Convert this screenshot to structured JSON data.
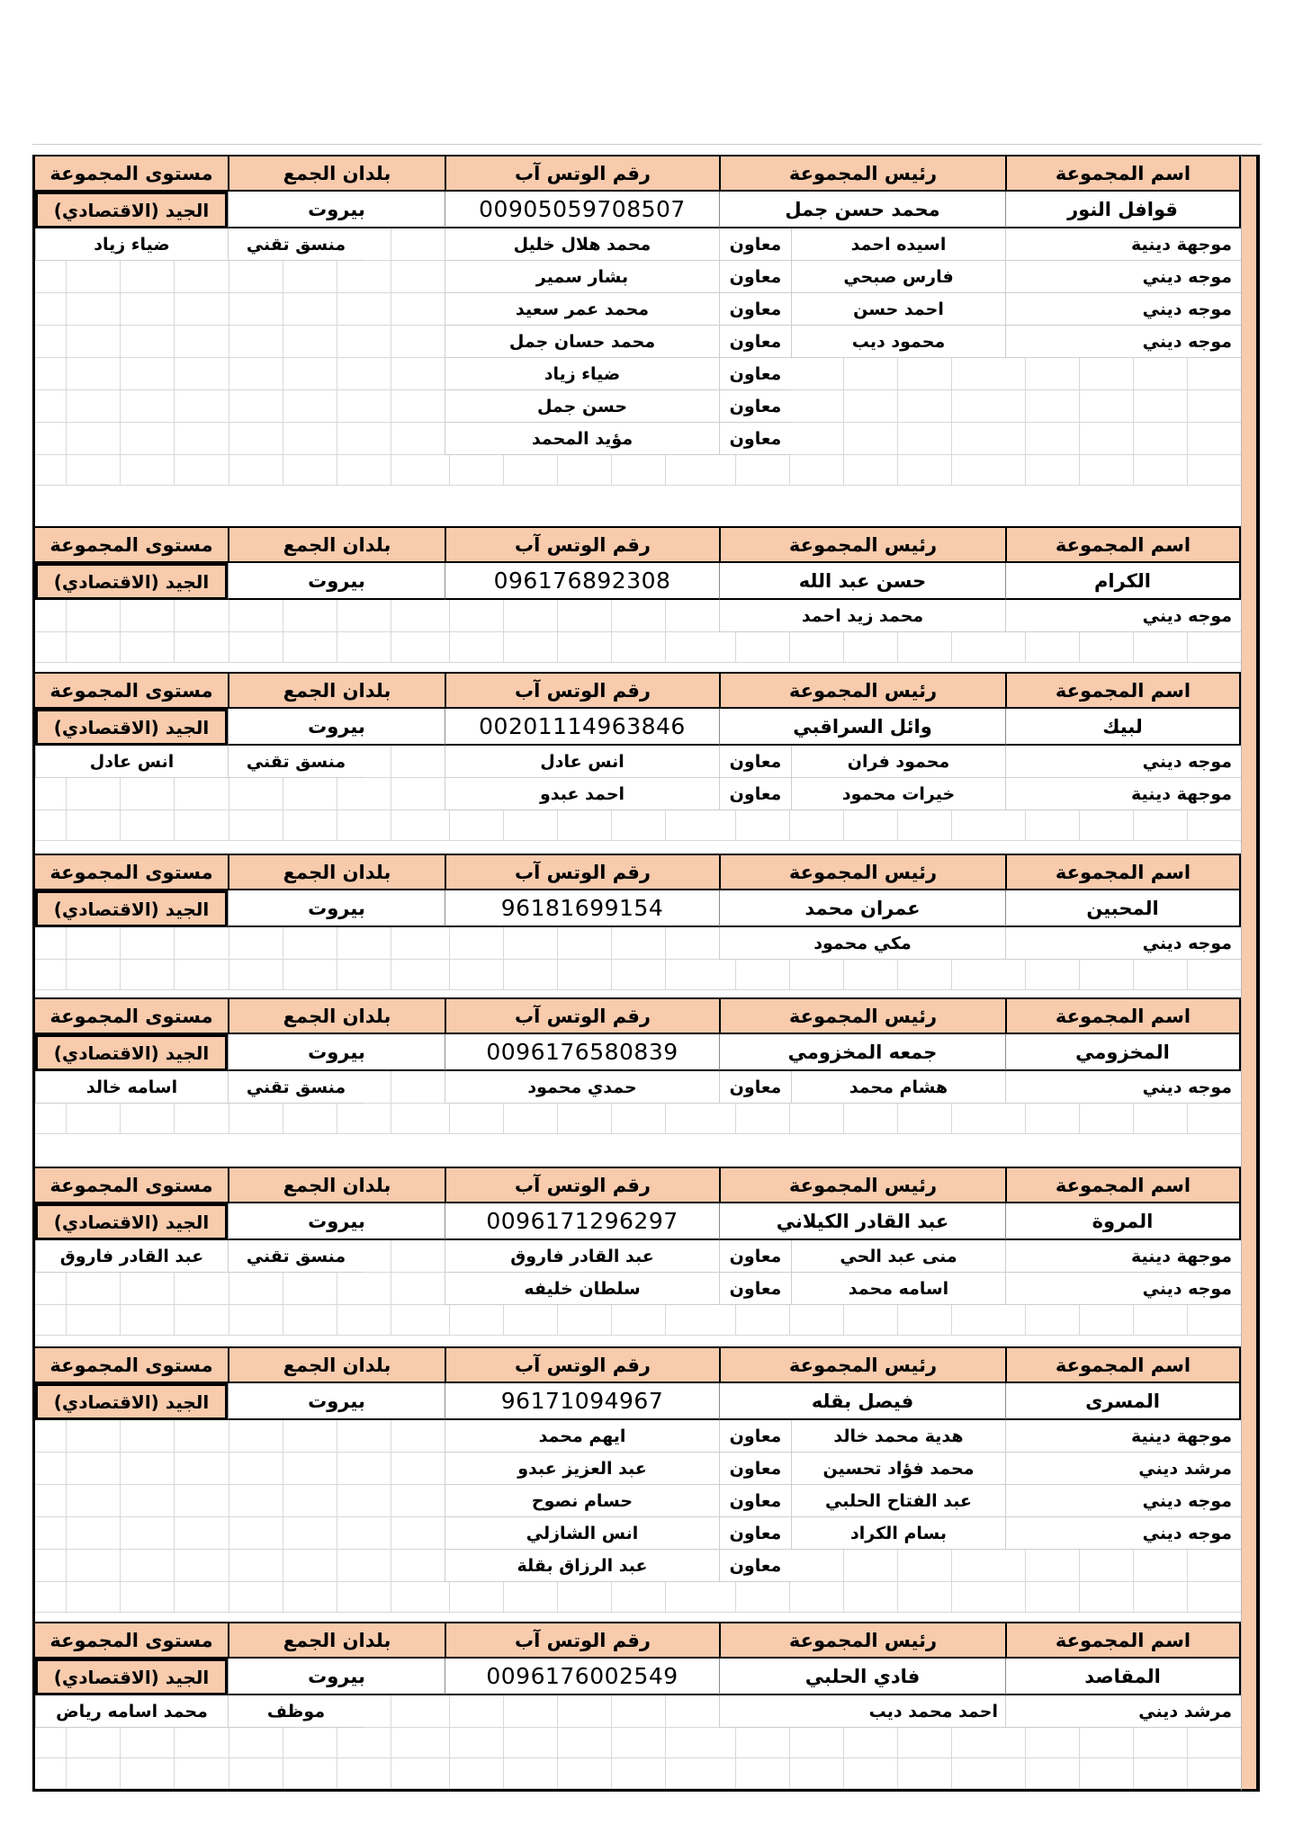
{
  "document": {
    "columns": [
      "اسم المجموعة",
      "رئيس المجموعة",
      "رقم الوتس آب",
      "بلدان الجمع",
      "مستوى المجموعة"
    ],
    "assistant_label": "معاون",
    "colors": {
      "header_bg": "#F8CBAD",
      "table_border": "#000000",
      "grid_line": "#D8D8D8",
      "number_flag_green": "#2E8B2E"
    },
    "blocks": [
      {
        "name": "قوافل النور",
        "leader": "محمد حسن جمل",
        "whatsapp": "00905059708507",
        "country": "بيروت",
        "level": "الجيد (الاقتصادي)",
        "flag": true,
        "gap_after": 45,
        "rows": [
          {
            "role": "موجهة دينية",
            "leader": "اسيده احمد",
            "assist": true,
            "member": "محمد هلال خليل",
            "coord": "منسق تقني",
            "level_name": "ضياء زياد"
          },
          {
            "role": "موجه ديني",
            "leader": "فارس صبحي",
            "assist": true,
            "member": "بشار سمير"
          },
          {
            "role": "موجه ديني",
            "leader": "احمد حسن",
            "assist": true,
            "member": "محمد عمر سعيد"
          },
          {
            "role": "موجه ديني",
            "leader": "محمود ديب",
            "assist": true,
            "member": "محمد حسان  جمل"
          },
          {
            "assist": true,
            "member": "ضياء زياد"
          },
          {
            "assist": true,
            "member": "حسن جمل"
          },
          {
            "assist": true,
            "member": "مؤيد المحمد"
          }
        ]
      },
      {
        "name": "الكرام",
        "leader": "حسن عبد الله",
        "whatsapp": "096176892308",
        "country": "بيروت",
        "level": "الجيد (الاقتصادي)",
        "flag": true,
        "gap_after": 10,
        "rows": [
          {
            "role": "موجه ديني",
            "leader_wide": "محمد زيد احمد"
          }
        ]
      },
      {
        "name": "لبيك",
        "leader": "وائل السراقبي",
        "whatsapp": "00201114963846",
        "country": "بيروت",
        "level": "الجيد (الاقتصادي)",
        "flag": true,
        "gap_after": 14,
        "rows": [
          {
            "role": "موجه ديني",
            "leader": "محمود فران",
            "assist": true,
            "member": "انس عادل",
            "coord": "منسق تقني",
            "level_name": "انس عادل"
          },
          {
            "role": "موجهة دينية",
            "leader": "خيرات محمود",
            "assist": true,
            "member": "احمد عبدو"
          }
        ]
      },
      {
        "name": "المحبين",
        "leader": "عمران محمد",
        "whatsapp": "96181699154",
        "country": "بيروت",
        "level": "الجيد (الاقتصادي)",
        "flag": false,
        "gap_after": 8,
        "rows": [
          {
            "role": "موجه ديني",
            "leader_wide": "مكي محمود"
          }
        ]
      },
      {
        "name": "المخزومي",
        "leader": "جمعه المخزومي",
        "whatsapp": "0096176580839",
        "country": "بيروت",
        "level": "الجيد (الاقتصادي)",
        "flag": true,
        "gap_after": 36,
        "rows": [
          {
            "role": "موجه ديني",
            "leader": "هشام محمد",
            "assist": true,
            "member": "حمدي محمود",
            "coord": "منسق تقني",
            "level_name": "اسامه خالد"
          }
        ]
      },
      {
        "name": "المروة",
        "leader": "عبد القادر الكيلاني",
        "whatsapp": "0096171296297",
        "country": "بيروت",
        "level": "الجيد (الاقتصادي)",
        "flag": true,
        "gap_after": 12,
        "rows": [
          {
            "role": "موجهة دينية",
            "leader": "منى عبد الحي",
            "assist": true,
            "member": "عبد القادر فاروق",
            "coord": "منسق تقني",
            "level_name": "عبد القادر فاروق"
          },
          {
            "role": "موجه ديني",
            "leader": "اسامه محمد",
            "assist": true,
            "member": "سلطان خليفه"
          }
        ]
      },
      {
        "name": "المسرى",
        "leader": "فيصل بقله",
        "whatsapp": "96171094967",
        "country": "بيروت",
        "level": "الجيد (الاقتصادي)",
        "flag": false,
        "gap_after": 10,
        "rows": [
          {
            "role": "موجهة دينية",
            "leader": "هدية محمد خالد",
            "assist": true,
            "member": "ايهم محمد"
          },
          {
            "role": "مرشد ديني",
            "leader": "محمد فؤاد تحسين",
            "assist": true,
            "member": "عبد العزيز عبدو"
          },
          {
            "role": "موجه ديني",
            "leader": "عبد الفتاح الحلبي",
            "assist": true,
            "member": "حسام نصوح"
          },
          {
            "role": "موجه ديني",
            "leader": "بسام الكراد",
            "assist": true,
            "member": "انس الشازلي"
          },
          {
            "assist": true,
            "member": "عبد الرزاق بقلة"
          }
        ]
      },
      {
        "name": "المقاصد",
        "leader": "فادي الحلبي",
        "whatsapp": "0096176002549",
        "country": "بيروت",
        "level": "الجيد (الاقتصادي)",
        "flag": true,
        "gap_after": 0,
        "extra_empty": 1,
        "rows": [
          {
            "role": "مرشد ديني",
            "leader_wide": "احمد  محمد ديب",
            "wide_align": "right",
            "coord": "موظف",
            "level_name": "محمد اسامه رياض"
          }
        ]
      }
    ]
  }
}
